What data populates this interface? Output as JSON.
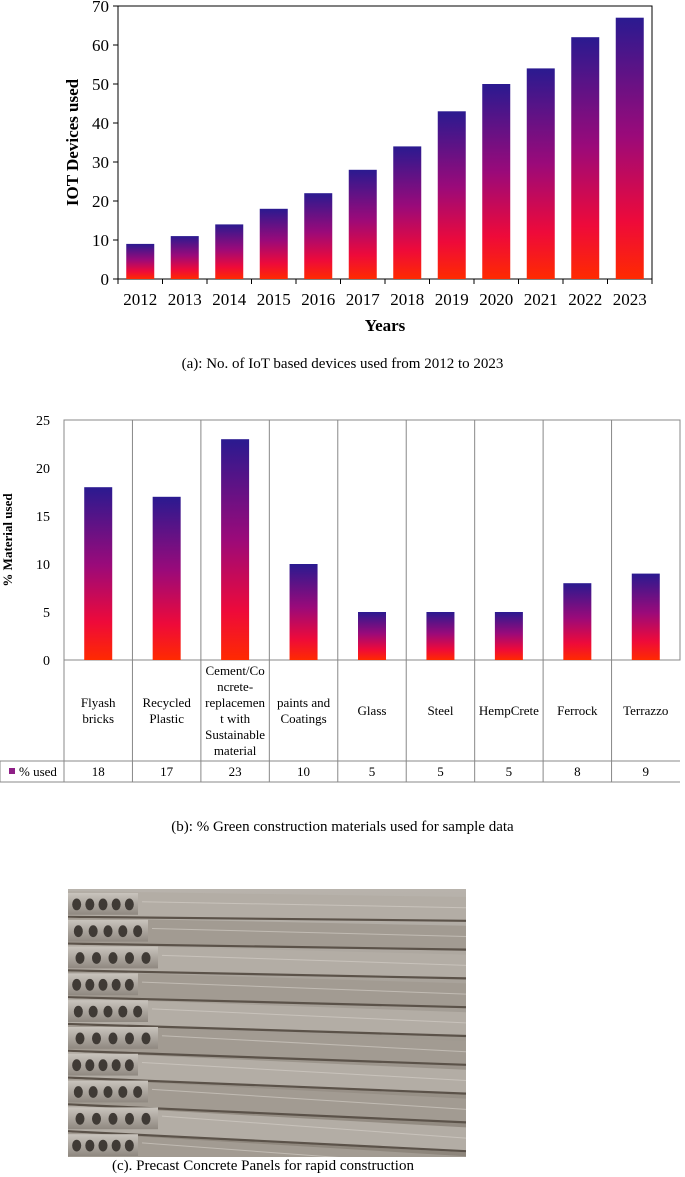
{
  "chart_data": [
    {
      "type": "bar",
      "title": "",
      "xlabel": "Years",
      "ylabel": "IOT Devices used",
      "ylim": [
        0,
        70
      ],
      "yticks": [
        0,
        10,
        20,
        30,
        40,
        50,
        60,
        70
      ],
      "categories": [
        "2012",
        "2013",
        "2014",
        "2015",
        "2016",
        "2017",
        "2018",
        "2019",
        "2020",
        "2021",
        "2022",
        "2023"
      ],
      "values": [
        9,
        11,
        14,
        18,
        22,
        28,
        34,
        43,
        50,
        54,
        62,
        67
      ],
      "grid": false,
      "legend": "none",
      "bar_gradient": [
        "#ff2a00",
        "#e8004a",
        "#7a0f8a",
        "#2a1a90"
      ]
    },
    {
      "type": "bar",
      "title": "",
      "xlabel": "",
      "ylabel": "% Material used",
      "ylim": [
        0,
        25
      ],
      "yticks": [
        0,
        5,
        10,
        15,
        20,
        25
      ],
      "categories": [
        "Flyash bricks",
        "Recycled Plastic",
        "Cement/Concrete-replacement with Sustainable material",
        "paints and Coatings",
        "Glass",
        "Steel",
        "HempCrete",
        "Ferrock",
        "Terrazzo"
      ],
      "category_display": [
        [
          "Flyash",
          "bricks"
        ],
        [
          "Recycled",
          "Plastic"
        ],
        [
          "Cement/Co",
          "ncrete-",
          "replacemen",
          "t with",
          "Sustainable",
          "material"
        ],
        [
          "paints and",
          "Coatings"
        ],
        [
          "Glass"
        ],
        [
          "Steel"
        ],
        [
          "HempCrete"
        ],
        [
          "Ferrock"
        ],
        [
          "Terrazzo"
        ]
      ],
      "series": [
        {
          "name": "% used",
          "values": [
            18,
            17,
            23,
            10,
            5,
            5,
            5,
            8,
            9
          ]
        }
      ],
      "data_table": true,
      "grid": false,
      "bar_gradient": [
        "#ff2a00",
        "#e8004a",
        "#7a0f8a",
        "#2a1a90"
      ]
    }
  ],
  "captions": {
    "a": "(a): No. of IoT based devices used from 2012 to 2023",
    "b": "(b):  % Green  construction materials used for sample data",
    "c": "(c). Precast Concrete Panels for rapid construction"
  },
  "photo": {
    "subject": "precast-concrete-hollow-core-panels"
  }
}
